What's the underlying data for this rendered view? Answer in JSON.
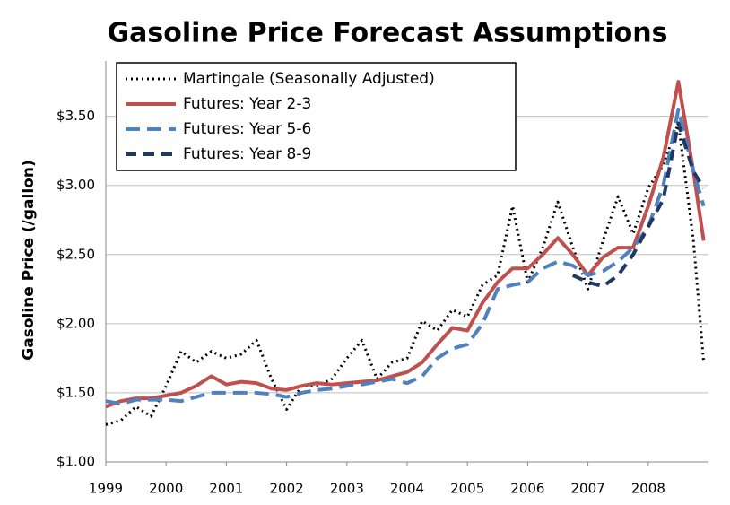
{
  "chart_data": {
    "type": "line",
    "title": "Gasoline Price Forecast Assumptions",
    "y_label": "Gasoline Price (/gallon)",
    "x": [
      1999,
      1999.25,
      1999.5,
      1999.75,
      2000,
      2000.25,
      2000.5,
      2000.75,
      2001,
      2001.25,
      2001.5,
      2001.75,
      2002,
      2002.25,
      2002.5,
      2002.75,
      2003,
      2003.25,
      2003.5,
      2003.75,
      2004,
      2004.25,
      2004.5,
      2004.75,
      2005,
      2005.25,
      2005.5,
      2005.75,
      2006,
      2006.25,
      2006.5,
      2006.75,
      2007,
      2007.25,
      2007.5,
      2007.75,
      2008,
      2008.25,
      2008.5,
      2008.75,
      2008.92
    ],
    "series": [
      {
        "name": "Martingale (Seasonally Adjusted)",
        "color": "#000000",
        "dash": "2,4",
        "values": [
          1.27,
          1.3,
          1.4,
          1.33,
          1.55,
          1.8,
          1.72,
          1.8,
          1.75,
          1.78,
          1.88,
          1.6,
          1.38,
          1.55,
          1.55,
          1.6,
          1.75,
          1.88,
          1.6,
          1.72,
          1.75,
          2.02,
          1.95,
          2.1,
          2.05,
          2.28,
          2.35,
          2.85,
          2.3,
          2.55,
          2.88,
          2.55,
          2.25,
          2.6,
          2.92,
          2.65,
          2.98,
          3.15,
          3.45,
          2.6,
          1.72
        ]
      },
      {
        "name": "Futures: Year 2-3",
        "color": "#c0504d",
        "dash": "none",
        "values": [
          1.4,
          1.44,
          1.46,
          1.46,
          1.48,
          1.5,
          1.55,
          1.62,
          1.56,
          1.58,
          1.57,
          1.53,
          1.52,
          1.55,
          1.57,
          1.56,
          1.57,
          1.58,
          1.59,
          1.62,
          1.65,
          1.72,
          1.85,
          1.97,
          1.95,
          2.15,
          2.3,
          2.4,
          2.4,
          2.5,
          2.62,
          2.5,
          2.35,
          2.48,
          2.55,
          2.55,
          2.85,
          3.2,
          3.75,
          3.1,
          2.6
        ]
      },
      {
        "name": "Futures: Year 5-6",
        "color": "#4f81bd",
        "dash": "16,8",
        "values": [
          1.44,
          1.42,
          1.45,
          1.45,
          1.45,
          1.44,
          1.47,
          1.5,
          1.5,
          1.5,
          1.5,
          1.49,
          1.47,
          1.5,
          1.52,
          1.53,
          1.55,
          1.56,
          1.58,
          1.6,
          1.57,
          1.62,
          1.75,
          1.82,
          1.85,
          2.0,
          2.25,
          2.28,
          2.3,
          2.4,
          2.45,
          2.42,
          2.35,
          2.38,
          2.45,
          2.55,
          2.7,
          3.0,
          3.55,
          3.1,
          2.85
        ]
      },
      {
        "name": "Futures: Year 8-9",
        "color": "#1f3864",
        "dash": "12,8",
        "values": [
          null,
          null,
          null,
          null,
          null,
          null,
          null,
          null,
          null,
          null,
          null,
          null,
          null,
          null,
          null,
          null,
          null,
          null,
          null,
          null,
          null,
          null,
          null,
          null,
          null,
          null,
          null,
          null,
          null,
          null,
          null,
          2.35,
          2.3,
          2.27,
          2.35,
          2.5,
          2.7,
          2.9,
          3.45,
          3.1,
          2.98
        ]
      }
    ],
    "xlim": [
      1999,
      2009
    ],
    "xticks": [
      1999,
      2000,
      2001,
      2002,
      2003,
      2004,
      2005,
      2006,
      2007,
      2008
    ],
    "ylim": [
      1,
      3.9
    ],
    "yticks": [
      {
        "value": 1,
        "label": "$1.00"
      },
      {
        "value": 1.5,
        "label": "$1.50"
      },
      {
        "value": 2,
        "label": "$2.00"
      },
      {
        "value": 2.5,
        "label": "$2.50"
      },
      {
        "value": 3,
        "label": "$3.00"
      },
      {
        "value": 3.5,
        "label": "$3.50"
      }
    ],
    "grid": true
  }
}
